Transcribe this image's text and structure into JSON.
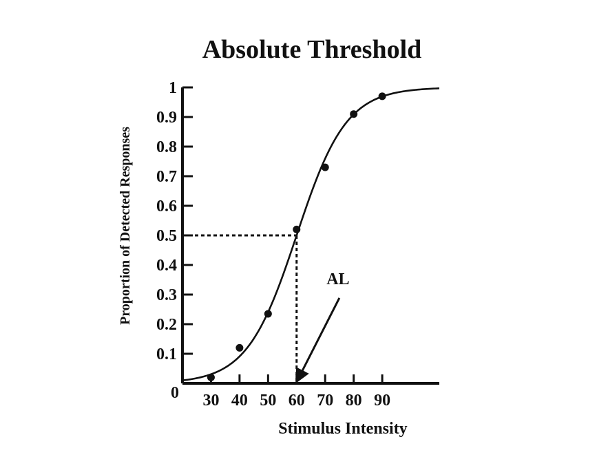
{
  "chart_data": {
    "type": "line",
    "title": "Absolute Threshold",
    "xlabel": "Stimulus Intensity",
    "ylabel": "Proportion of Detected Responses",
    "origin_label": "0",
    "xlim": [
      20,
      110
    ],
    "ylim": [
      0,
      1
    ],
    "x_ticks": [
      20,
      30,
      40,
      50,
      60,
      70,
      80,
      90
    ],
    "x_tick_labels": [
      "",
      "30",
      "40",
      "50",
      "60",
      "70",
      "80",
      "90"
    ],
    "y_ticks": [
      0.1,
      0.2,
      0.3,
      0.4,
      0.5,
      0.6,
      0.7,
      0.8,
      0.9,
      1.0
    ],
    "y_tick_labels": [
      "0.1",
      "0.2",
      "0.3",
      "0.4",
      "0.5",
      "0.6",
      "0.7",
      "0.8",
      "0.9",
      "1"
    ],
    "points": [
      {
        "x": 30,
        "y": 0.02
      },
      {
        "x": 40,
        "y": 0.12
      },
      {
        "x": 50,
        "y": 0.235
      },
      {
        "x": 60,
        "y": 0.52
      },
      {
        "x": 70,
        "y": 0.73
      },
      {
        "x": 80,
        "y": 0.91
      },
      {
        "x": 90,
        "y": 0.97
      }
    ],
    "curve": {
      "type": "logistic",
      "midpoint": 60,
      "slope": 0.115,
      "x_range": [
        20,
        110
      ]
    },
    "threshold": {
      "x": 60,
      "y": 0.5
    },
    "annotation": {
      "label": "AL",
      "target_x": 60,
      "target_y": 0.0,
      "text_x": 74.5,
      "text_y": 0.335
    },
    "colors": {
      "line": "#111111",
      "points": "#111111",
      "background": "#ffffff"
    }
  }
}
